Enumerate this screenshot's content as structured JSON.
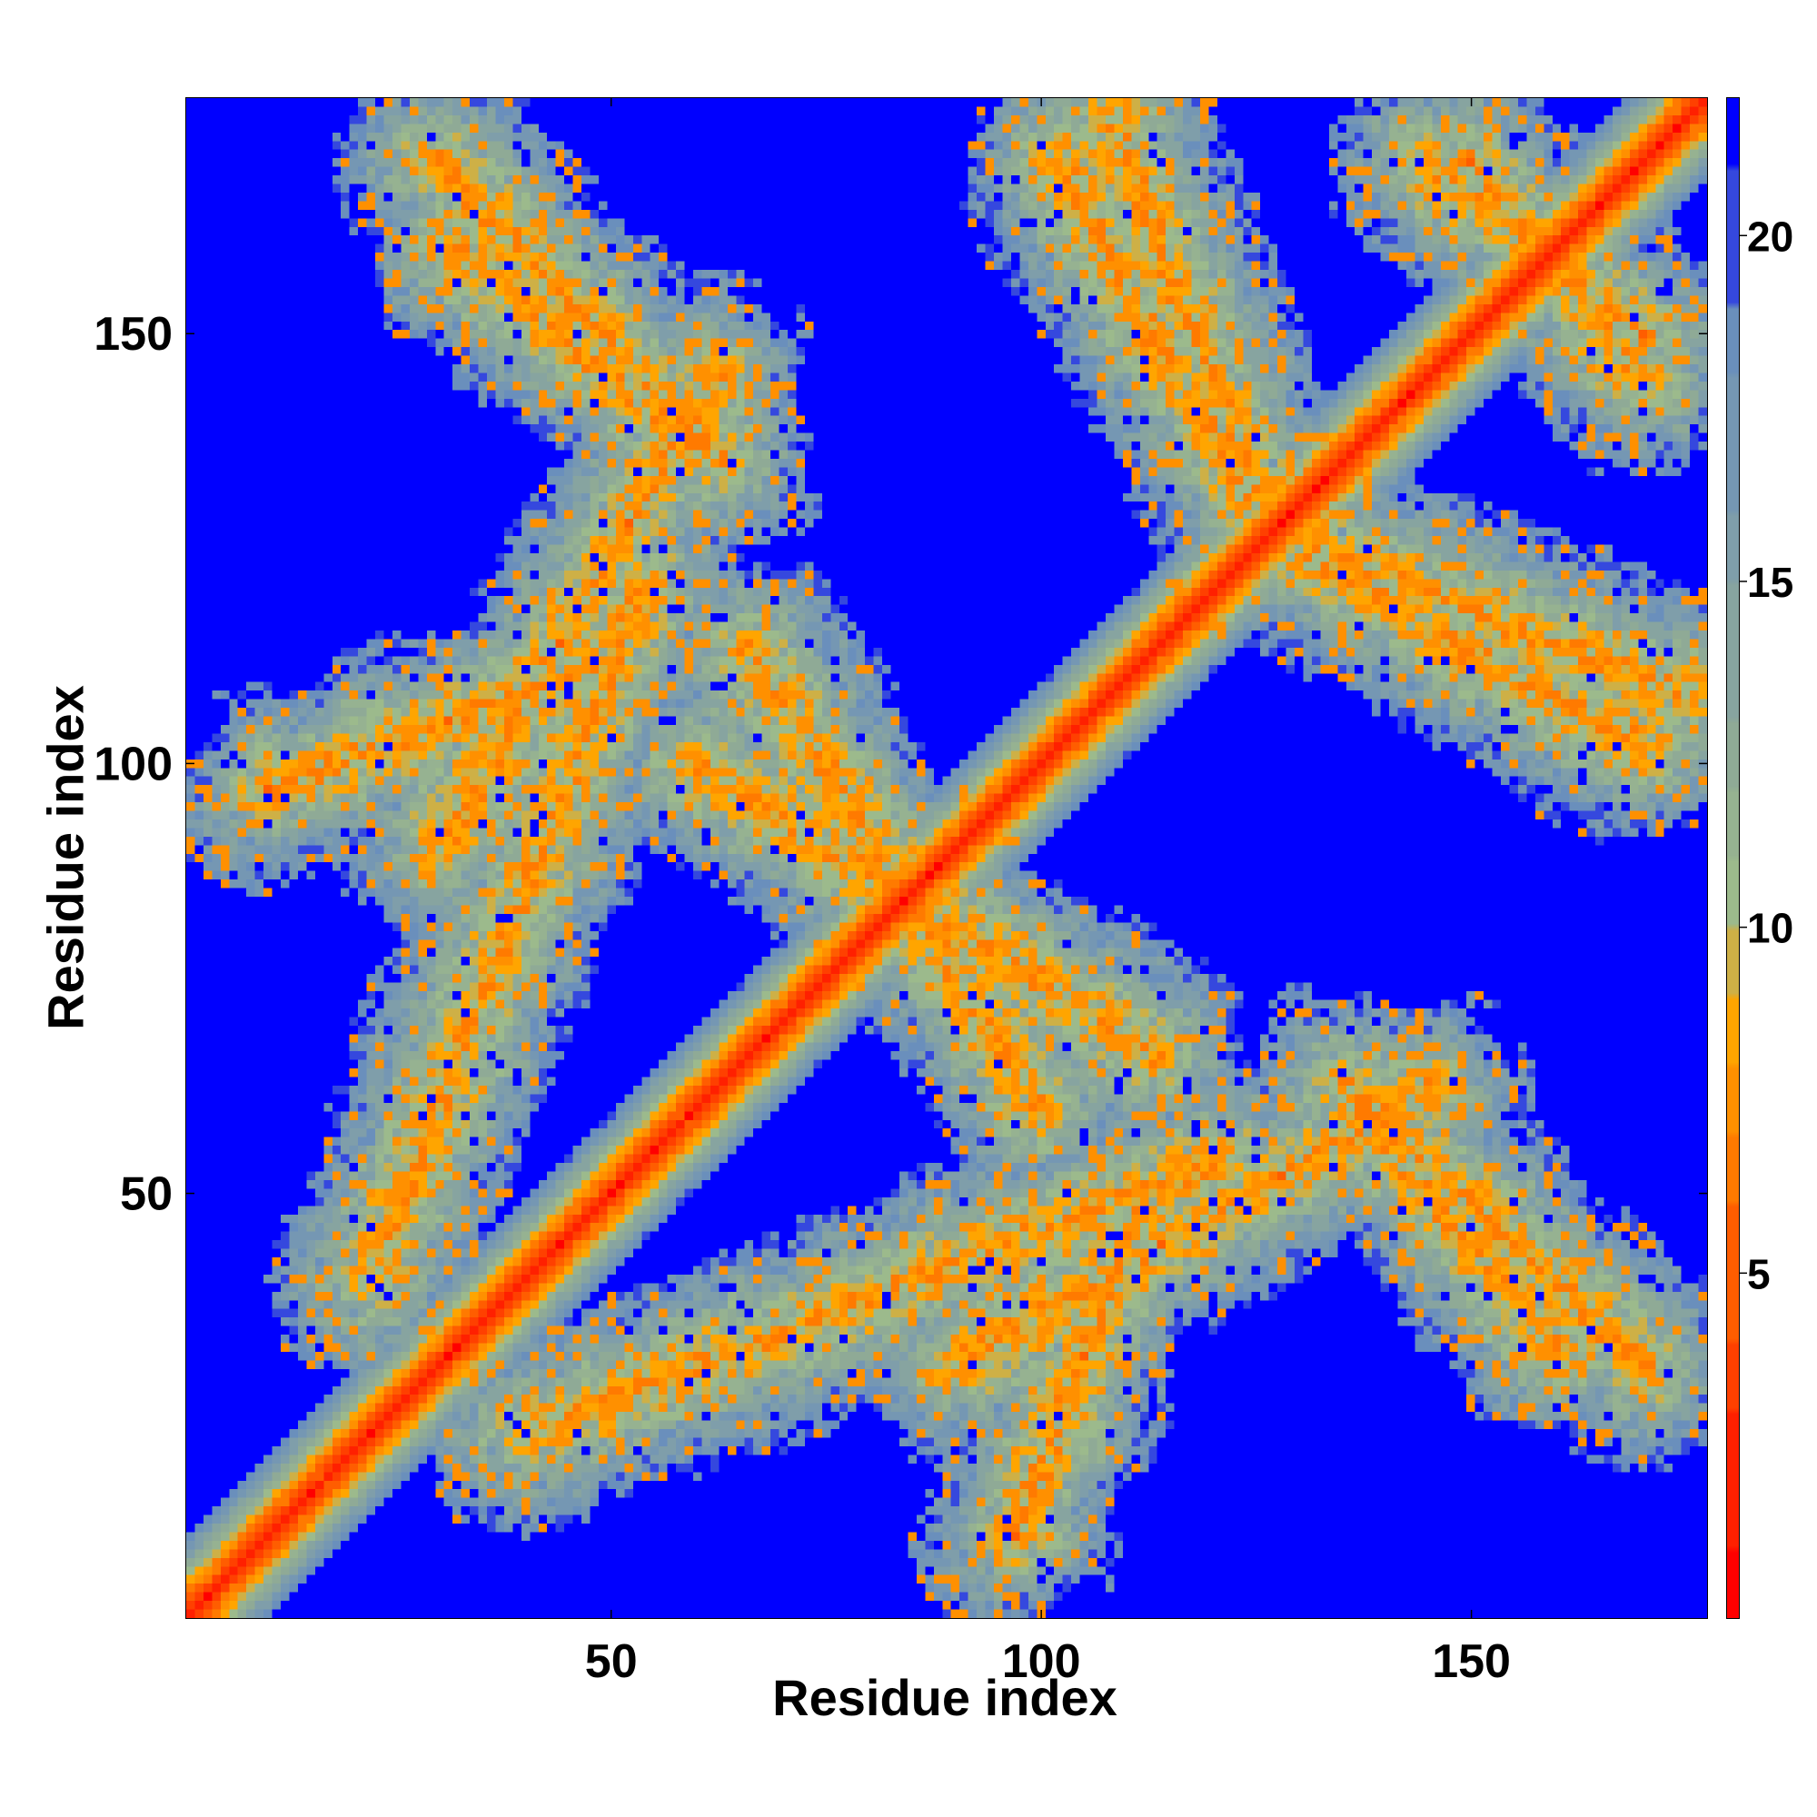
{
  "chart_data": {
    "type": "heatmap",
    "title": "",
    "xlabel": "Residue index",
    "ylabel": "Residue index",
    "xlim": [
      1,
      177
    ],
    "ylim": [
      1,
      177
    ],
    "x_ticks": [
      50,
      100,
      150
    ],
    "y_ticks": [
      50,
      100,
      150
    ],
    "colorbar": {
      "range": [
        0,
        22
      ],
      "ticks": [
        5,
        10,
        15,
        20
      ],
      "colors": [
        "#ff0000",
        "#ff4000",
        "#ff7a00",
        "#ffa500",
        "#9cba8c",
        "#8faa96",
        "#7f9eaa",
        "#6a8fbc",
        "#0000ff"
      ],
      "stops": [
        0,
        3,
        6,
        8.2,
        9.8,
        12,
        15,
        18,
        20.8
      ]
    },
    "structure": {
      "n": 177,
      "cutoff": 21,
      "diagonal_width": 9,
      "contact_bands": [
        {
          "from": [
            22,
            40
          ],
          "to": [
            54,
            122
          ],
          "strength": 0.85
        },
        {
          "from": [
            32,
            160
          ],
          "to": [
            62,
            135
          ],
          "strength": 0.8
        },
        {
          "from": [
            10,
            97
          ],
          "to": [
            50,
            112
          ],
          "strength": 0.8
        },
        {
          "from": [
            66,
            113
          ],
          "to": [
            100,
            60
          ],
          "strength": 0.85
        },
        {
          "from": [
            90,
            30
          ],
          "to": [
            145,
            62
          ],
          "strength": 0.9
        },
        {
          "from": [
            135,
            63
          ],
          "to": [
            170,
            30
          ],
          "strength": 0.85
        },
        {
          "from": [
            102,
            170
          ],
          "to": [
            127,
            125
          ],
          "strength": 0.8
        },
        {
          "from": [
            132,
            125
          ],
          "to": [
            175,
            108
          ],
          "strength": 0.75
        },
        {
          "from": [
            145,
            170
          ],
          "to": [
            170,
            150
          ],
          "strength": 0.75
        }
      ],
      "colorbar_levels": 22
    }
  }
}
